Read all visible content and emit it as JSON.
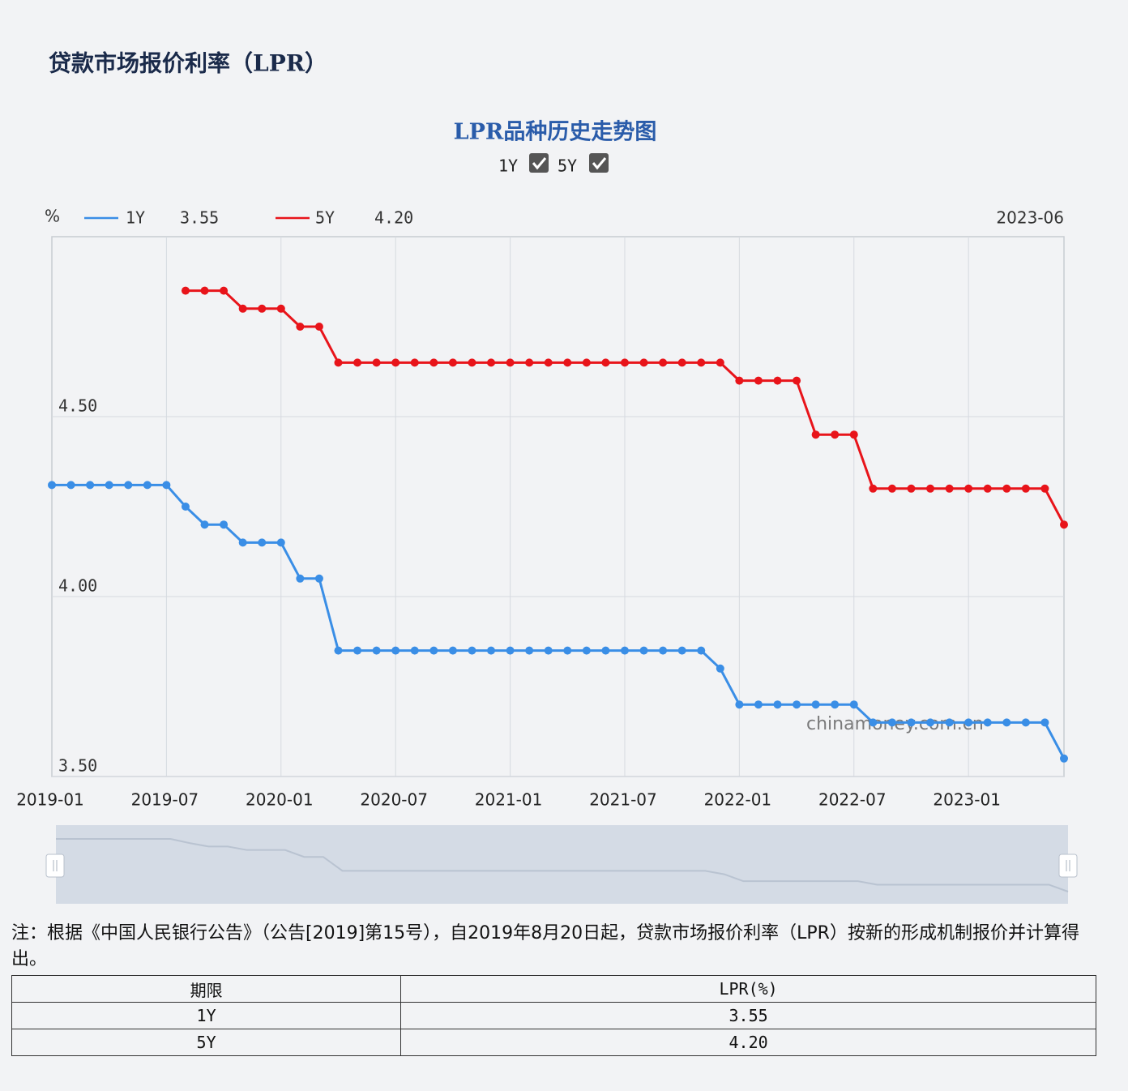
{
  "header": {
    "title": "贷款市场报价利率（LPR）"
  },
  "chart_data": {
    "type": "line",
    "title": "LPR品种历史走势图",
    "y_unit": "%",
    "latest_date": "2023-06",
    "watermark": "chinamoney.com.cn",
    "categories": [
      "2019-01",
      null,
      null,
      null,
      null,
      null,
      "2019-07",
      null,
      null,
      null,
      null,
      null,
      "2020-01",
      null,
      null,
      null,
      null,
      null,
      "2020-07",
      null,
      null,
      null,
      null,
      null,
      "2021-01",
      null,
      null,
      null,
      null,
      null,
      "2021-07",
      null,
      null,
      null,
      null,
      null,
      "2022-01",
      null,
      null,
      null,
      null,
      null,
      "2022-07",
      null,
      null,
      null,
      null,
      null,
      "2023-01",
      null,
      null,
      null,
      null,
      null
    ],
    "series": [
      {
        "name": "1Y",
        "color": "#3a8ee6",
        "current": 3.55,
        "values": [
          4.31,
          4.31,
          4.31,
          4.31,
          4.31,
          4.31,
          4.31,
          4.25,
          4.2,
          4.2,
          4.15,
          4.15,
          4.15,
          4.05,
          4.05,
          3.85,
          3.85,
          3.85,
          3.85,
          3.85,
          3.85,
          3.85,
          3.85,
          3.85,
          3.85,
          3.85,
          3.85,
          3.85,
          3.85,
          3.85,
          3.85,
          3.85,
          3.85,
          3.85,
          3.85,
          3.8,
          3.7,
          3.7,
          3.7,
          3.7,
          3.7,
          3.7,
          3.7,
          3.65,
          3.65,
          3.65,
          3.65,
          3.65,
          3.65,
          3.65,
          3.65,
          3.65,
          3.65,
          3.55
        ]
      },
      {
        "name": "5Y",
        "color": "#e8141a",
        "current": {
          "value": 4.2,
          "label": "4.20"
        },
        "values": [
          null,
          null,
          null,
          null,
          null,
          null,
          null,
          4.85,
          4.85,
          4.85,
          4.8,
          4.8,
          4.8,
          4.75,
          4.75,
          4.65,
          4.65,
          4.65,
          4.65,
          4.65,
          4.65,
          4.65,
          4.65,
          4.65,
          4.65,
          4.65,
          4.65,
          4.65,
          4.65,
          4.65,
          4.65,
          4.65,
          4.65,
          4.65,
          4.65,
          4.65,
          4.6,
          4.6,
          4.6,
          4.6,
          4.45,
          4.45,
          4.45,
          4.3,
          4.3,
          4.3,
          4.3,
          4.3,
          4.3,
          4.3,
          4.3,
          4.3,
          4.3,
          4.2
        ]
      }
    ],
    "ylim": [
      3.5,
      5.0
    ],
    "yticks": [
      {
        "value": 3.5,
        "label": "3.50"
      },
      {
        "value": 4.0,
        "label": "4.00"
      },
      {
        "value": 4.5,
        "label": "4.50"
      }
    ],
    "grid": true,
    "legend": "top-left"
  },
  "note": "注：根据《中国人民银行公告》（公告[2019]第15号），自2019年8月20日起，贷款市场报价利率（LPR）按新的形成机制报价并计算得出。",
  "table": {
    "columns": [
      "期限",
      "LPR(%)"
    ],
    "rows": [
      [
        "1Y",
        "3.55"
      ],
      [
        "5Y",
        "4.20"
      ]
    ]
  }
}
